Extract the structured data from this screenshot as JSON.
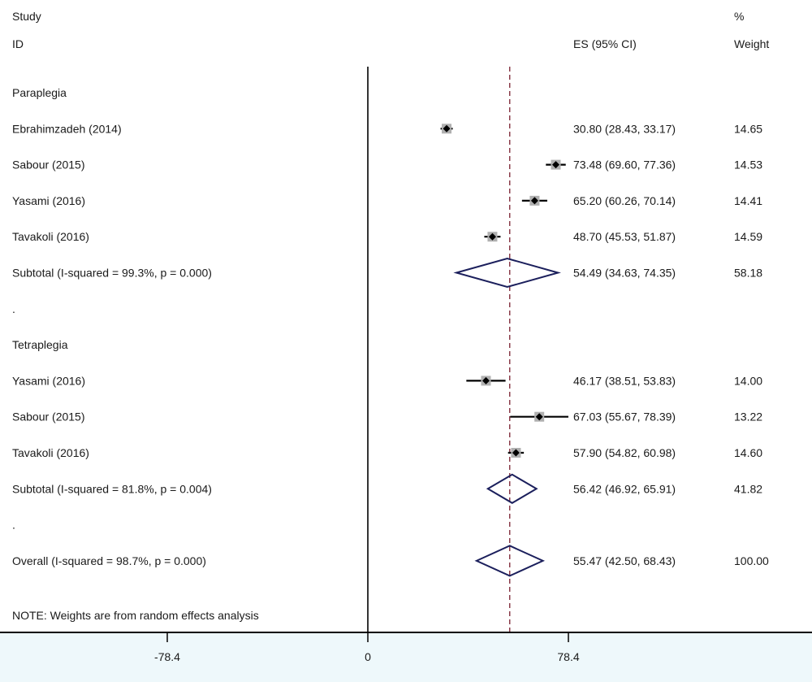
{
  "colors": {
    "background": "#ffffff",
    "axis_band": "#eef8fb",
    "axis_line": "#000000",
    "point": "#000000",
    "point_box": "#b0b0b0",
    "diamond": "#1b1f5c",
    "overall_line": "#7a2030"
  },
  "headers": {
    "study_top": "Study",
    "study_bottom": "ID",
    "es": "ES (95% CI)",
    "weight_top": "%",
    "weight_bottom": "Weight"
  },
  "note": "NOTE: Weights are from random effects analysis",
  "chart_data": {
    "type": "forest",
    "xlim": [
      -78.4,
      78.4
    ],
    "xticks": [
      "-78.4",
      "0",
      "78.4"
    ],
    "null_line": 0,
    "overall_effect": 55.47,
    "rows": [
      {
        "kind": "group",
        "label": "Paraplegia"
      },
      {
        "kind": "study",
        "label": "Ebrahimzadeh (2014)",
        "es": 30.8,
        "lo": 28.43,
        "hi": 33.17,
        "ci_text": "30.80 (28.43, 33.17)",
        "weight": "14.65"
      },
      {
        "kind": "study",
        "label": "Sabour (2015)",
        "es": 73.48,
        "lo": 69.6,
        "hi": 77.36,
        "ci_text": "73.48 (69.60, 77.36)",
        "weight": "14.53"
      },
      {
        "kind": "study",
        "label": "Yasami (2016)",
        "es": 65.2,
        "lo": 60.26,
        "hi": 70.14,
        "ci_text": "65.20 (60.26, 70.14)",
        "weight": "14.41"
      },
      {
        "kind": "study",
        "label": "Tavakoli (2016)",
        "es": 48.7,
        "lo": 45.53,
        "hi": 51.87,
        "ci_text": "48.70 (45.53, 51.87)",
        "weight": "14.59"
      },
      {
        "kind": "subtotal",
        "label": "Subtotal  (I-squared = 99.3%, p = 0.000)",
        "es": 54.49,
        "lo": 34.63,
        "hi": 74.35,
        "ci_text": "54.49 (34.63, 74.35)",
        "weight": "58.18"
      },
      {
        "kind": "blank",
        "label": "."
      },
      {
        "kind": "group",
        "label": "Tetraplegia"
      },
      {
        "kind": "study",
        "label": "Yasami (2016)",
        "es": 46.17,
        "lo": 38.51,
        "hi": 53.83,
        "ci_text": "46.17 (38.51, 53.83)",
        "weight": "14.00"
      },
      {
        "kind": "study",
        "label": "Sabour (2015)",
        "es": 67.03,
        "lo": 55.67,
        "hi": 78.39,
        "ci_text": "67.03 (55.67, 78.39)",
        "weight": "13.22"
      },
      {
        "kind": "study",
        "label": "Tavakoli (2016)",
        "es": 57.9,
        "lo": 54.82,
        "hi": 60.98,
        "ci_text": "57.90 (54.82, 60.98)",
        "weight": "14.60"
      },
      {
        "kind": "subtotal",
        "label": "Subtotal  (I-squared = 81.8%, p = 0.004)",
        "es": 56.42,
        "lo": 46.92,
        "hi": 65.91,
        "ci_text": "56.42 (46.92, 65.91)",
        "weight": "41.82"
      },
      {
        "kind": "blank",
        "label": "."
      },
      {
        "kind": "overall",
        "label": "Overall  (I-squared = 98.7%, p = 0.000)",
        "es": 55.47,
        "lo": 42.5,
        "hi": 68.43,
        "ci_text": "55.47 (42.50, 68.43)",
        "weight": "100.00"
      }
    ]
  }
}
